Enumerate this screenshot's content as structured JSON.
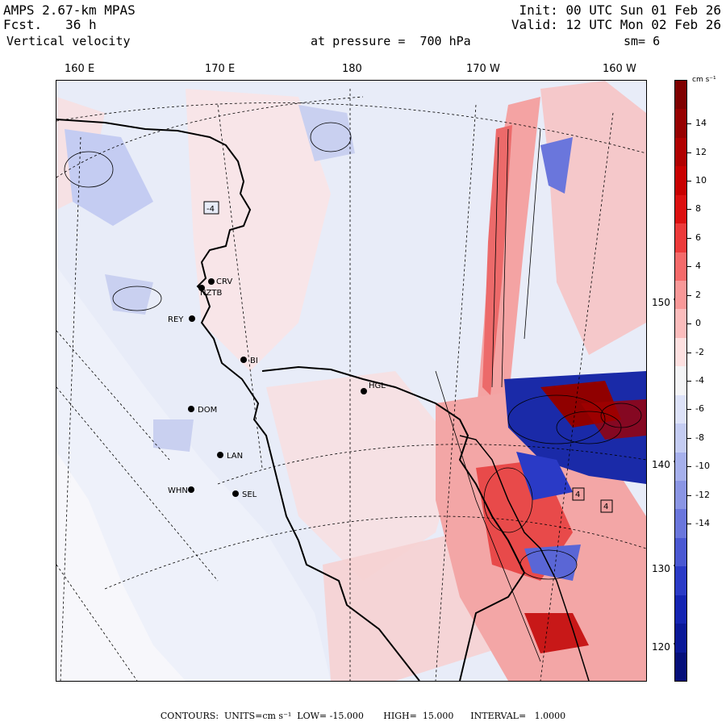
{
  "header": {
    "model": "AMPS 2.67-km MPAS",
    "forecast": "Fcst.   36 h",
    "field": "Vertical velocity",
    "level": "at pressure =  700 hPa",
    "smoothing": "sm= 6",
    "init": "Init: 00 UTC Sun 01 Feb 26",
    "valid": "Valid: 12 UTC Mon 02 Feb 26"
  },
  "longitude_labels": [
    "160 E",
    "170 E",
    "180",
    "170 W",
    "160 W"
  ],
  "latitude_labels": [
    "150 W",
    "140 W",
    "130 W",
    "120 W"
  ],
  "stations": [
    {
      "code": "CRV"
    },
    {
      "code": "NZTB"
    },
    {
      "code": "REY"
    },
    {
      "code": "BI"
    },
    {
      "code": "DOM"
    },
    {
      "code": "LAN"
    },
    {
      "code": "WHN"
    },
    {
      "code": "SEL"
    },
    {
      "code": "HGL"
    }
  ],
  "map_box_labels": [
    "-4",
    "4",
    "4"
  ],
  "colorbar": {
    "units": "cm s⁻¹",
    "tick_labels": [
      "14",
      "12",
      "10",
      "8",
      "6",
      "4",
      "2",
      "0",
      "-2",
      "-4",
      "-6",
      "-8",
      "-10",
      "-12",
      "-14"
    ],
    "colors": [
      "#7f0000",
      "#960000",
      "#b00000",
      "#c80000",
      "#dc1010",
      "#ec3a3a",
      "#f46a6a",
      "#f89898",
      "#fbbcbc",
      "#fde0e0",
      "#f4f4f6",
      "#dde2f8",
      "#c4ccf2",
      "#a6b0ec",
      "#8a95e4",
      "#6a76dc",
      "#4a58d2",
      "#2a3ac6",
      "#1424b2",
      "#0a1898",
      "#050f7a"
    ]
  },
  "footer": "CONTOURS:  UNITS=cm s⁻¹  LOW= -15.000       HIGH=  15.000      INTERVAL=   1.0000"
}
